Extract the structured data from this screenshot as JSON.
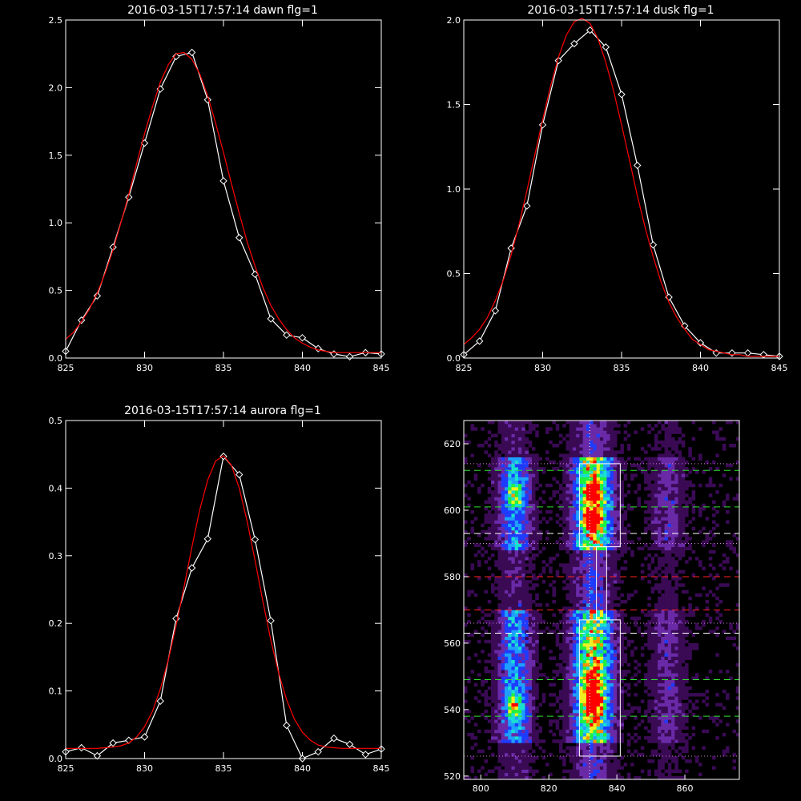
{
  "chart_data": [
    {
      "type": "line",
      "title": "2016-03-15T17:57:14 dawn flg=1",
      "xlim": [
        825,
        845
      ],
      "ylim": [
        0,
        2.5
      ],
      "xticks": [
        "825",
        "830",
        "835",
        "840",
        "845"
      ],
      "yticks": [
        "0.0",
        "0.5",
        "1.0",
        "1.5",
        "2.0",
        "2.5"
      ],
      "grid": false,
      "series": [
        {
          "color": "#ffffff",
          "marker": "diamond",
          "x": [
            825,
            826,
            827,
            828,
            829,
            830,
            831,
            832,
            833,
            834,
            835,
            836,
            837,
            838,
            839,
            840,
            841,
            842,
            843,
            844,
            845
          ],
          "y": [
            0.05,
            0.28,
            0.46,
            0.82,
            1.19,
            1.59,
            1.99,
            2.23,
            2.26,
            1.91,
            1.31,
            0.89,
            0.62,
            0.29,
            0.17,
            0.15,
            0.07,
            0.03,
            0.01,
            0.04,
            0.03
          ]
        },
        {
          "color": "#ff0000",
          "fit": "gaussian",
          "x": [
            825,
            825.5,
            826,
            826.5,
            827,
            827.5,
            828,
            828.5,
            829,
            829.5,
            830,
            830.5,
            831,
            831.5,
            832,
            832.5,
            833,
            833.5,
            834,
            834.5,
            835,
            835.5,
            836,
            836.5,
            837,
            837.5,
            838,
            838.5,
            839,
            839.5,
            840,
            840.5,
            841,
            841.5,
            842,
            842.5,
            843,
            843.5,
            844,
            844.5,
            845
          ],
          "y": [
            0.14,
            0.19,
            0.27,
            0.36,
            0.48,
            0.63,
            0.8,
            1.0,
            1.21,
            1.44,
            1.66,
            1.86,
            2.04,
            2.17,
            2.25,
            2.26,
            2.21,
            2.1,
            1.94,
            1.74,
            1.52,
            1.29,
            1.07,
            0.86,
            0.68,
            0.52,
            0.39,
            0.29,
            0.21,
            0.15,
            0.11,
            0.08,
            0.06,
            0.05,
            0.04,
            0.04,
            0.04,
            0.04,
            0.04,
            0.04,
            0.04
          ]
        }
      ]
    },
    {
      "type": "line",
      "title": "2016-03-15T17:57:14 dusk flg=1",
      "xlim": [
        825,
        845
      ],
      "ylim": [
        0,
        2.0
      ],
      "xticks": [
        "825",
        "830",
        "835",
        "840",
        "845"
      ],
      "yticks": [
        "0.0",
        "0.5",
        "1.0",
        "1.5",
        "2.0"
      ],
      "grid": false,
      "series": [
        {
          "color": "#ffffff",
          "marker": "diamond",
          "x": [
            825,
            826,
            827,
            828,
            829,
            830,
            831,
            832,
            833,
            834,
            835,
            836,
            837,
            838,
            839,
            840,
            841,
            842,
            843,
            844,
            845
          ],
          "y": [
            0.02,
            0.1,
            0.28,
            0.65,
            0.9,
            1.38,
            1.76,
            1.86,
            1.94,
            1.84,
            1.56,
            1.14,
            0.67,
            0.36,
            0.19,
            0.09,
            0.03,
            0.03,
            0.03,
            0.02,
            0.01
          ]
        },
        {
          "color": "#ff0000",
          "fit": "gaussian",
          "x": [
            825,
            825.5,
            826,
            826.5,
            827,
            827.5,
            828,
            828.5,
            829,
            829.5,
            830,
            830.5,
            831,
            831.5,
            832,
            832.5,
            833,
            833.5,
            834,
            834.5,
            835,
            835.5,
            836,
            836.5,
            837,
            837.5,
            838,
            838.5,
            839,
            839.5,
            840,
            840.5,
            841,
            841.5,
            842,
            842.5,
            843,
            843.5,
            844,
            844.5,
            845
          ],
          "y": [
            0.08,
            0.12,
            0.17,
            0.24,
            0.34,
            0.46,
            0.61,
            0.79,
            0.99,
            1.2,
            1.41,
            1.61,
            1.78,
            1.91,
            1.99,
            2.01,
            1.98,
            1.89,
            1.75,
            1.58,
            1.38,
            1.17,
            0.96,
            0.77,
            0.6,
            0.45,
            0.33,
            0.24,
            0.17,
            0.11,
            0.08,
            0.05,
            0.04,
            0.03,
            0.02,
            0.02,
            0.01,
            0.01,
            0.01,
            0.01,
            0.01
          ]
        }
      ]
    },
    {
      "type": "line",
      "title": "2016-03-15T17:57:14 aurora flg=1",
      "xlim": [
        825,
        845
      ],
      "ylim": [
        0,
        0.5
      ],
      "xticks": [
        "825",
        "830",
        "835",
        "840",
        "845"
      ],
      "yticks": [
        "0.0",
        "0.1",
        "0.2",
        "0.3",
        "0.4",
        "0.5"
      ],
      "grid": false,
      "series": [
        {
          "color": "#ffffff",
          "marker": "diamond",
          "x": [
            825,
            826,
            827,
            828,
            829,
            830,
            831,
            832,
            833,
            834,
            835,
            836,
            837,
            838,
            839,
            840,
            841,
            842,
            843,
            844,
            845
          ],
          "y": [
            0.01,
            0.016,
            0.004,
            0.023,
            0.027,
            0.032,
            0.085,
            0.207,
            0.282,
            0.325,
            0.447,
            0.42,
            0.324,
            0.204,
            0.049,
            0.0,
            0.01,
            0.03,
            0.021,
            0.006,
            0.014
          ]
        },
        {
          "color": "#ff0000",
          "fit": "gaussian",
          "x": [
            825,
            825.5,
            826,
            826.5,
            827,
            827.5,
            828,
            828.5,
            829,
            829.5,
            830,
            830.5,
            831,
            831.5,
            832,
            832.5,
            833,
            833.5,
            834,
            834.5,
            835,
            835.5,
            836,
            836.5,
            837,
            837.5,
            838,
            838.5,
            839,
            839.5,
            840,
            840.5,
            841,
            841.5,
            842,
            842.5,
            843,
            843.5,
            844,
            844.5,
            845
          ],
          "y": [
            0.015,
            0.015,
            0.015,
            0.015,
            0.015,
            0.016,
            0.017,
            0.019,
            0.023,
            0.032,
            0.047,
            0.07,
            0.103,
            0.146,
            0.197,
            0.254,
            0.313,
            0.368,
            0.412,
            0.44,
            0.448,
            0.434,
            0.4,
            0.351,
            0.293,
            0.232,
            0.175,
            0.126,
            0.087,
            0.058,
            0.039,
            0.027,
            0.02,
            0.017,
            0.016,
            0.015,
            0.015,
            0.015,
            0.015,
            0.015,
            0.015
          ]
        }
      ]
    },
    {
      "type": "heatmap",
      "title": "",
      "xlim": [
        795,
        876
      ],
      "ylim": [
        519,
        627
      ],
      "xticks": [
        "800",
        "820",
        "840",
        "860"
      ],
      "yticks": [
        "520",
        "540",
        "560",
        "580",
        "600",
        "620"
      ],
      "colormap": [
        "#000000",
        "#3a0a55",
        "#6a2aa8",
        "#1e3cff",
        "#1ea0ff",
        "#19e0d0",
        "#20f040",
        "#f0f020",
        "#ff9000",
        "#ff0000"
      ],
      "vertical_line_x": 832,
      "emission_columns": [
        {
          "center_x": 810,
          "width": 6,
          "intensity": 0.55
        },
        {
          "center_x": 833,
          "width": 7,
          "intensity": 1.0
        },
        {
          "center_x": 855,
          "width": 6,
          "intensity": 0.25
        }
      ],
      "bright_spots": [
        {
          "x": 833,
          "y": 605,
          "level": 1.0
        },
        {
          "x": 833,
          "y": 597,
          "level": 0.9
        },
        {
          "x": 833,
          "y": 542,
          "level": 1.0
        },
        {
          "x": 833,
          "y": 548,
          "level": 0.85
        },
        {
          "x": 810,
          "y": 541,
          "level": 0.7
        },
        {
          "x": 810,
          "y": 604,
          "level": 0.6
        }
      ],
      "boxes": [
        {
          "x0": 829,
          "x1": 841,
          "y0": 589,
          "y1": 614
        },
        {
          "x0": 829,
          "x1": 841,
          "y0": 526,
          "y1": 567
        },
        {
          "x0": 834,
          "x1": 837,
          "y0": 567,
          "y1": 589
        }
      ],
      "hlines": [
        {
          "y": 612,
          "color": "#30e030",
          "style": "dashed"
        },
        {
          "y": 601,
          "color": "#30e030",
          "style": "dashed"
        },
        {
          "y": 549,
          "color": "#30e030",
          "style": "dashed"
        },
        {
          "y": 538,
          "color": "#30e030",
          "style": "dashed"
        },
        {
          "y": 593,
          "color": "#ffffff",
          "style": "dashed"
        },
        {
          "y": 563,
          "color": "#ffffff",
          "style": "dashed"
        },
        {
          "y": 580,
          "color": "#ff2020",
          "style": "dashed"
        },
        {
          "y": 570,
          "color": "#ff2020",
          "style": "dashed"
        },
        {
          "y": 614,
          "color": "#cc88cc",
          "style": "dotted"
        },
        {
          "y": 590,
          "color": "#cc88cc",
          "style": "dotted"
        },
        {
          "y": 566,
          "color": "#cc88cc",
          "style": "dotted"
        },
        {
          "y": 526,
          "color": "#cc88cc",
          "style": "dotted"
        }
      ]
    }
  ]
}
